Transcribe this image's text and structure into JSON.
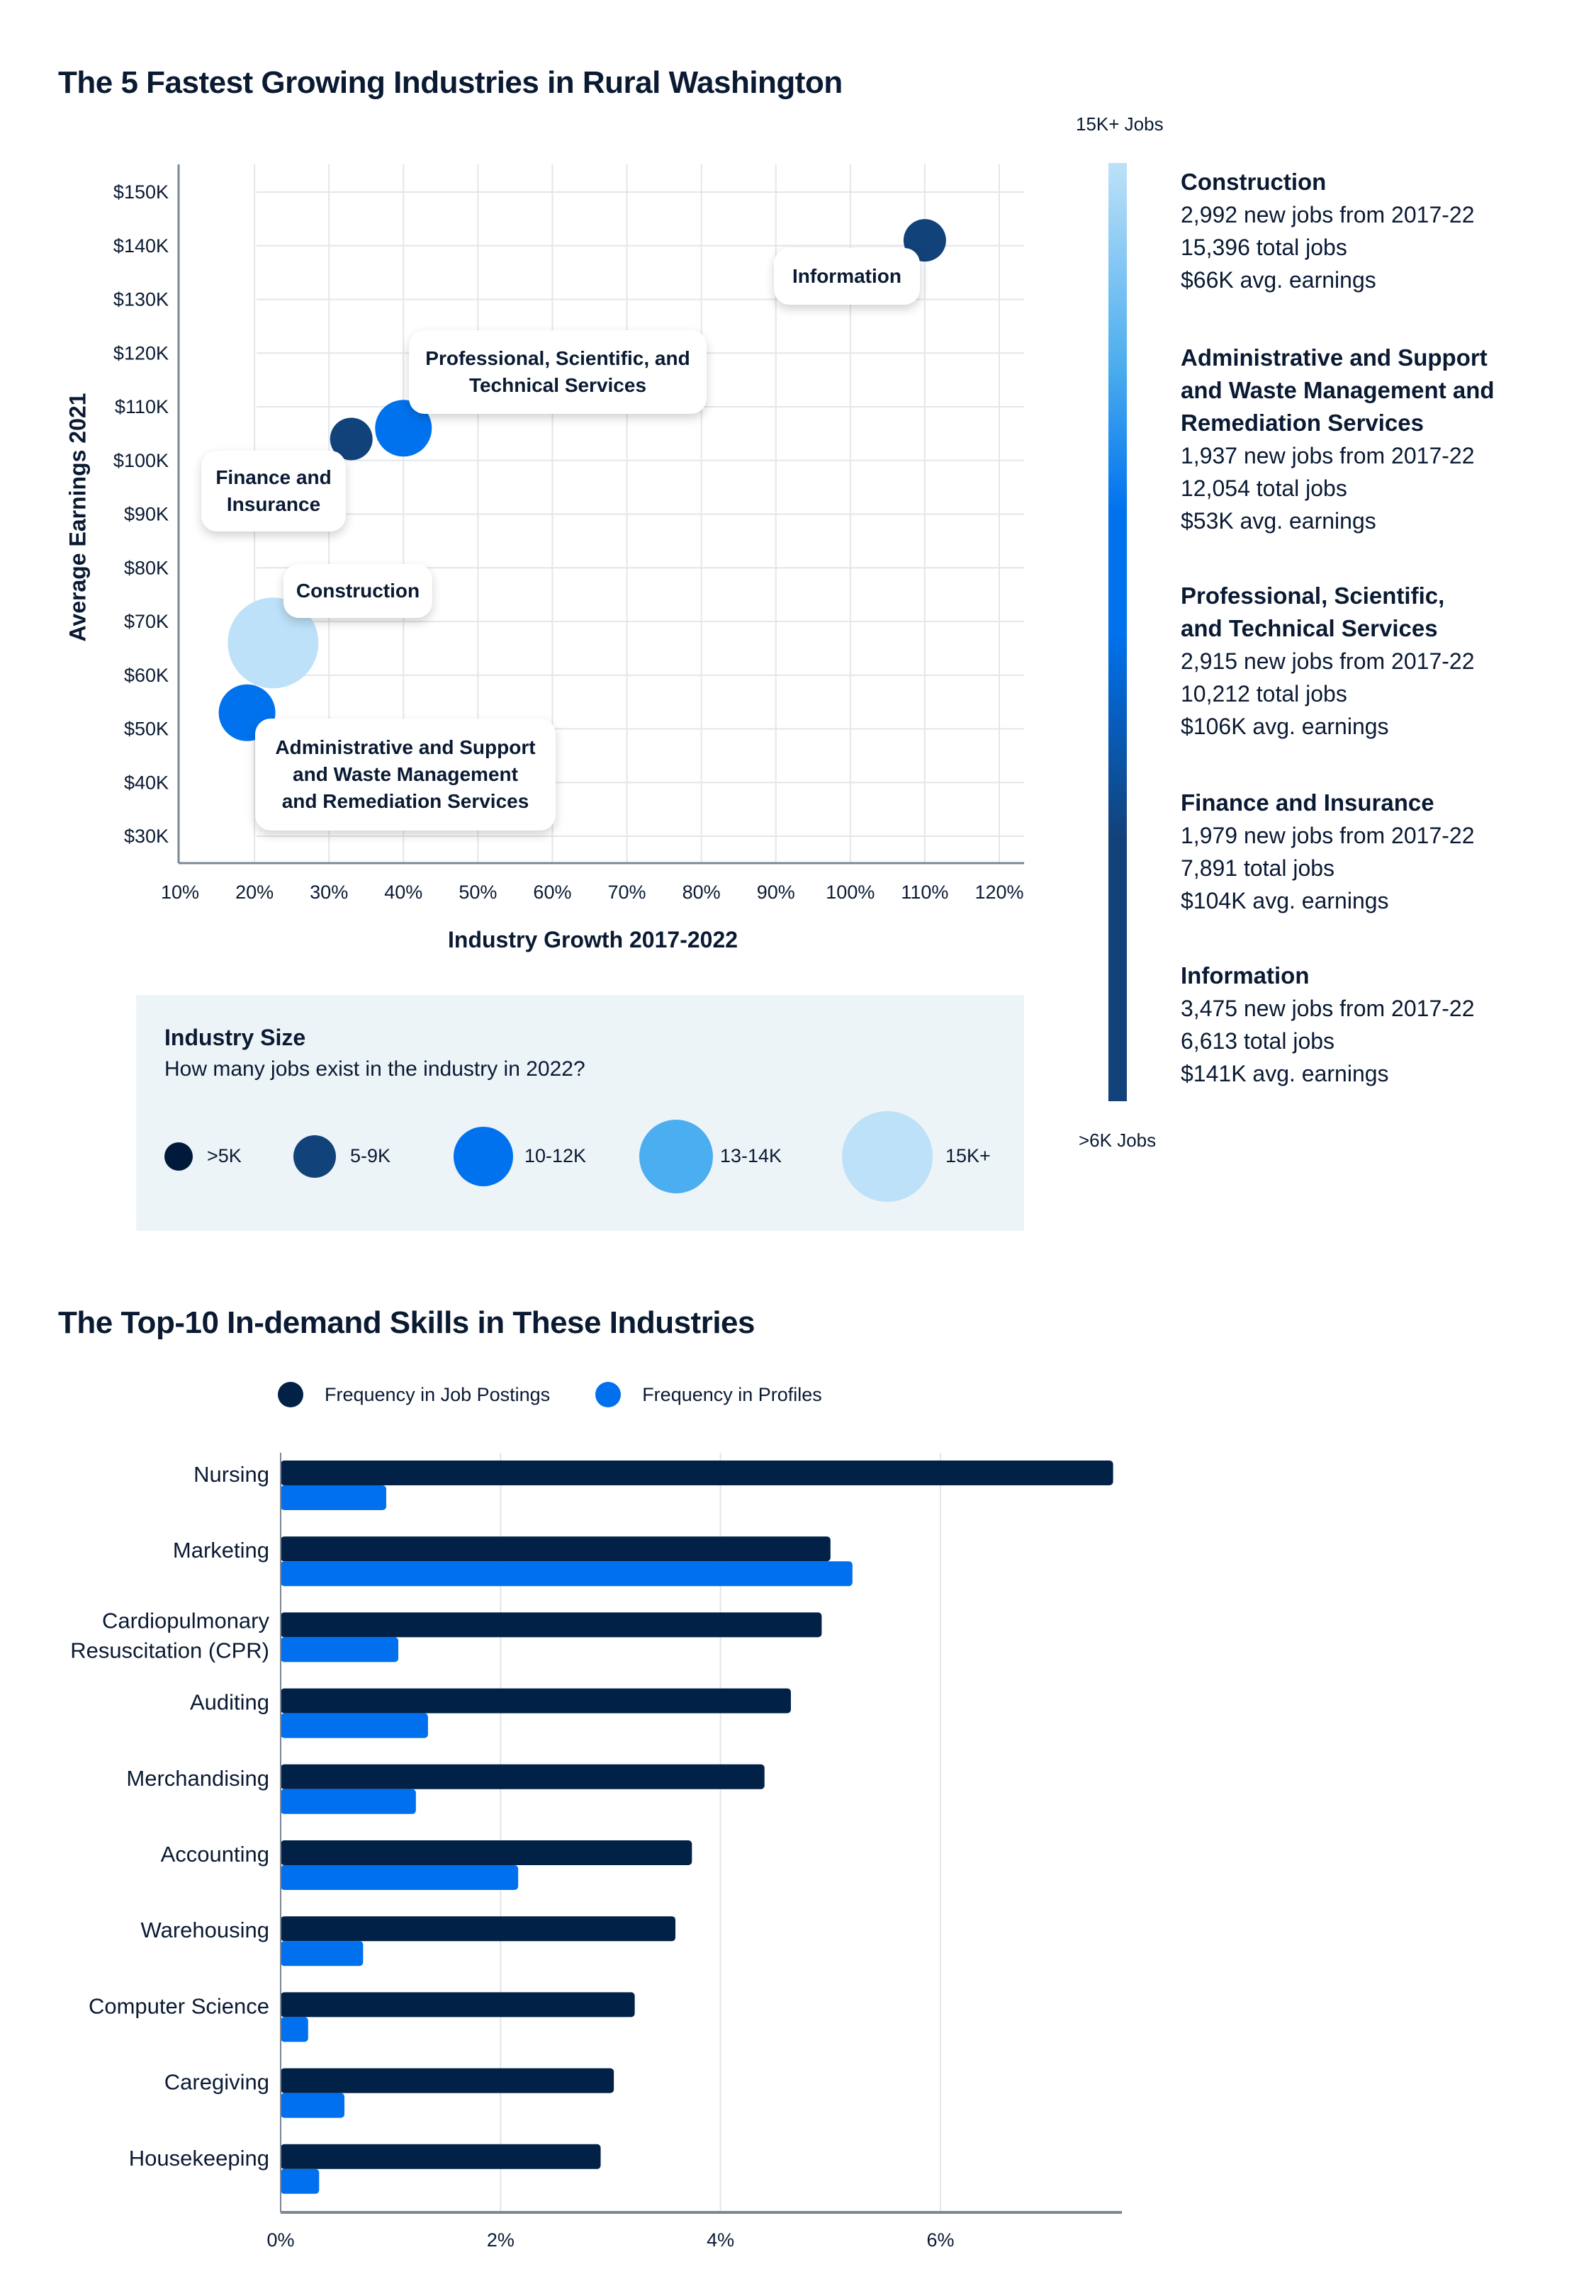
{
  "section1": {
    "title": "The 5 Fastest Growing Industries in Rural Washington",
    "colorbar": {
      "top_label": "15K+ Jobs",
      "bottom_label": ">6K Jobs",
      "colors": [
        "#bde1f8",
        "#4aacee",
        "#0072ee",
        "#12427a"
      ]
    },
    "legend": {
      "title": "Industry Size",
      "subtitle": "How many jobs exist in the industry in 2022?",
      "items": [
        {
          "label": ">5K",
          "color": "#01193a"
        },
        {
          "label": "5-9K",
          "color": "#12427a"
        },
        {
          "label": "10-12K",
          "color": "#0072ee"
        },
        {
          "label": "13-14K",
          "color": "#4aaef0"
        },
        {
          "label": "15K+",
          "color": "#bde1f8"
        }
      ]
    },
    "industries": [
      {
        "name": "Construction",
        "new_jobs": "2,992 new jobs from 2017-22",
        "total_jobs": "15,396 total jobs",
        "earnings": "$66K avg. earnings"
      },
      {
        "name": "Administrative and Support\nand Waste Management and\nRemediation Services",
        "new_jobs": "1,937 new jobs from 2017-22",
        "total_jobs": "12,054 total jobs",
        "earnings": "$53K avg. earnings"
      },
      {
        "name": "Professional, Scientific,\nand Technical Services",
        "new_jobs": "2,915 new jobs from 2017-22",
        "total_jobs": "10,212 total jobs",
        "earnings": "$106K avg. earnings"
      },
      {
        "name": "Finance and Insurance",
        "new_jobs": "1,979 new jobs from 2017-22",
        "total_jobs": "7,891 total jobs",
        "earnings": "$104K avg. earnings"
      },
      {
        "name": "Information",
        "new_jobs": "3,475 new jobs from 2017-22",
        "total_jobs": "6,613 total jobs",
        "earnings": "$141K avg. earnings"
      }
    ]
  },
  "section2": {
    "title": "The Top-10 In-demand Skills in These Industries"
  },
  "chart_data": [
    {
      "type": "scatter",
      "title": "The 5 Fastest Growing Industries in Rural Washington",
      "xlabel": "Industry Growth 2017-2022",
      "ylabel": "Average Earnings 2021",
      "xlim": [
        10,
        120
      ],
      "ylim": [
        25,
        155
      ],
      "x_ticks": [
        "10%",
        "20%",
        "30%",
        "40%",
        "50%",
        "60%",
        "70%",
        "80%",
        "90%",
        "100%",
        "110%",
        "120%"
      ],
      "y_ticks": [
        "$30K",
        "$40K",
        "$50K",
        "$60K",
        "$70K",
        "$80K",
        "$90K",
        "$100K",
        "$110K",
        "$120K",
        "$130K",
        "$140K",
        "$150K"
      ],
      "grid": true,
      "points": [
        {
          "label": "Information",
          "callout": "Information",
          "x": 110,
          "y": 141,
          "size_class": "5-9K",
          "color": "#12427a",
          "total_jobs": 6613
        },
        {
          "label": "Professional, Scientific, and Technical Services",
          "callout": "Professional, Scientific, and\nTechnical Services",
          "x": 40,
          "y": 106,
          "size_class": "10-12K",
          "color": "#0072ee",
          "total_jobs": 10212
        },
        {
          "label": "Finance and Insurance",
          "callout": "Finance and\nInsurance",
          "x": 33,
          "y": 104,
          "size_class": "5-9K",
          "color": "#12427a",
          "total_jobs": 7891
        },
        {
          "label": "Construction",
          "callout": "Construction",
          "x": 22.5,
          "y": 66,
          "size_class": "15K+",
          "color": "#bde1f8",
          "total_jobs": 15396
        },
        {
          "label": "Administrative and Support and Waste Management and Remediation Services",
          "callout": "Administrative and Support\nand Waste Management\nand Remediation Services",
          "x": 19,
          "y": 53,
          "size_class": "10-12K",
          "color": "#0072ee",
          "total_jobs": 12054
        }
      ]
    },
    {
      "type": "bar",
      "orientation": "horizontal",
      "title": "The Top-10 In-demand Skills in These Industries",
      "categories": [
        "Nursing",
        "Marketing",
        "Cardiopulmonary\nResuscitation (CPR)",
        "Auditing",
        "Merchandising",
        "Accounting",
        "Warehousing",
        "Computer Science",
        "Caregiving",
        "Housekeeping"
      ],
      "series": [
        {
          "name": "Frequency in Job Postings",
          "color": "#012147",
          "values": [
            7.57,
            5.0,
            4.92,
            4.64,
            4.4,
            3.74,
            3.59,
            3.22,
            3.03,
            2.91
          ]
        },
        {
          "name": "Frequency in Profiles",
          "color": "#0070ee",
          "values": [
            0.96,
            5.2,
            1.07,
            1.34,
            1.23,
            2.16,
            0.75,
            0.25,
            0.58,
            0.35
          ]
        }
      ],
      "xlim": [
        0,
        7.65
      ],
      "x_ticks": [
        "0%",
        "2%",
        "4%",
        "6%"
      ],
      "x_tick_values": [
        0,
        2,
        4,
        6
      ],
      "legend": "top",
      "grid": true
    }
  ]
}
